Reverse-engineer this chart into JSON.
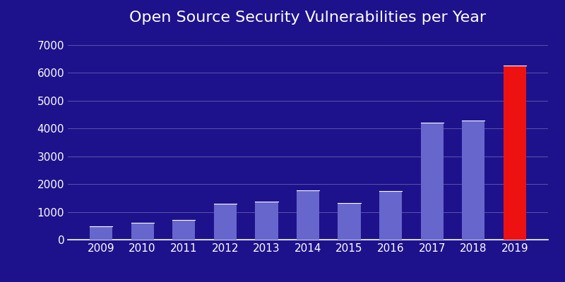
{
  "title": "Open Source Security Vulnerabilities per Year",
  "years": [
    "2009",
    "2010",
    "2011",
    "2012",
    "2013",
    "2014",
    "2015",
    "2016",
    "2017",
    "2018",
    "2019"
  ],
  "values": [
    480,
    620,
    720,
    1280,
    1370,
    1780,
    1310,
    1750,
    4200,
    4280,
    6250
  ],
  "bar_colors": [
    "#6666cc",
    "#6666cc",
    "#6666cc",
    "#6666cc",
    "#6666cc",
    "#6666cc",
    "#6666cc",
    "#6666cc",
    "#6666cc",
    "#6666cc",
    "#ee1111"
  ],
  "background_color": "#1e128c",
  "title_color": "#ffffff",
  "tick_color": "#ffffff",
  "grid_color": "#5555aa",
  "ylim": [
    0,
    7400
  ],
  "yticks": [
    0,
    1000,
    2000,
    3000,
    4000,
    5000,
    6000,
    7000
  ],
  "title_fontsize": 16,
  "tick_fontsize": 11,
  "bar_width": 0.55
}
